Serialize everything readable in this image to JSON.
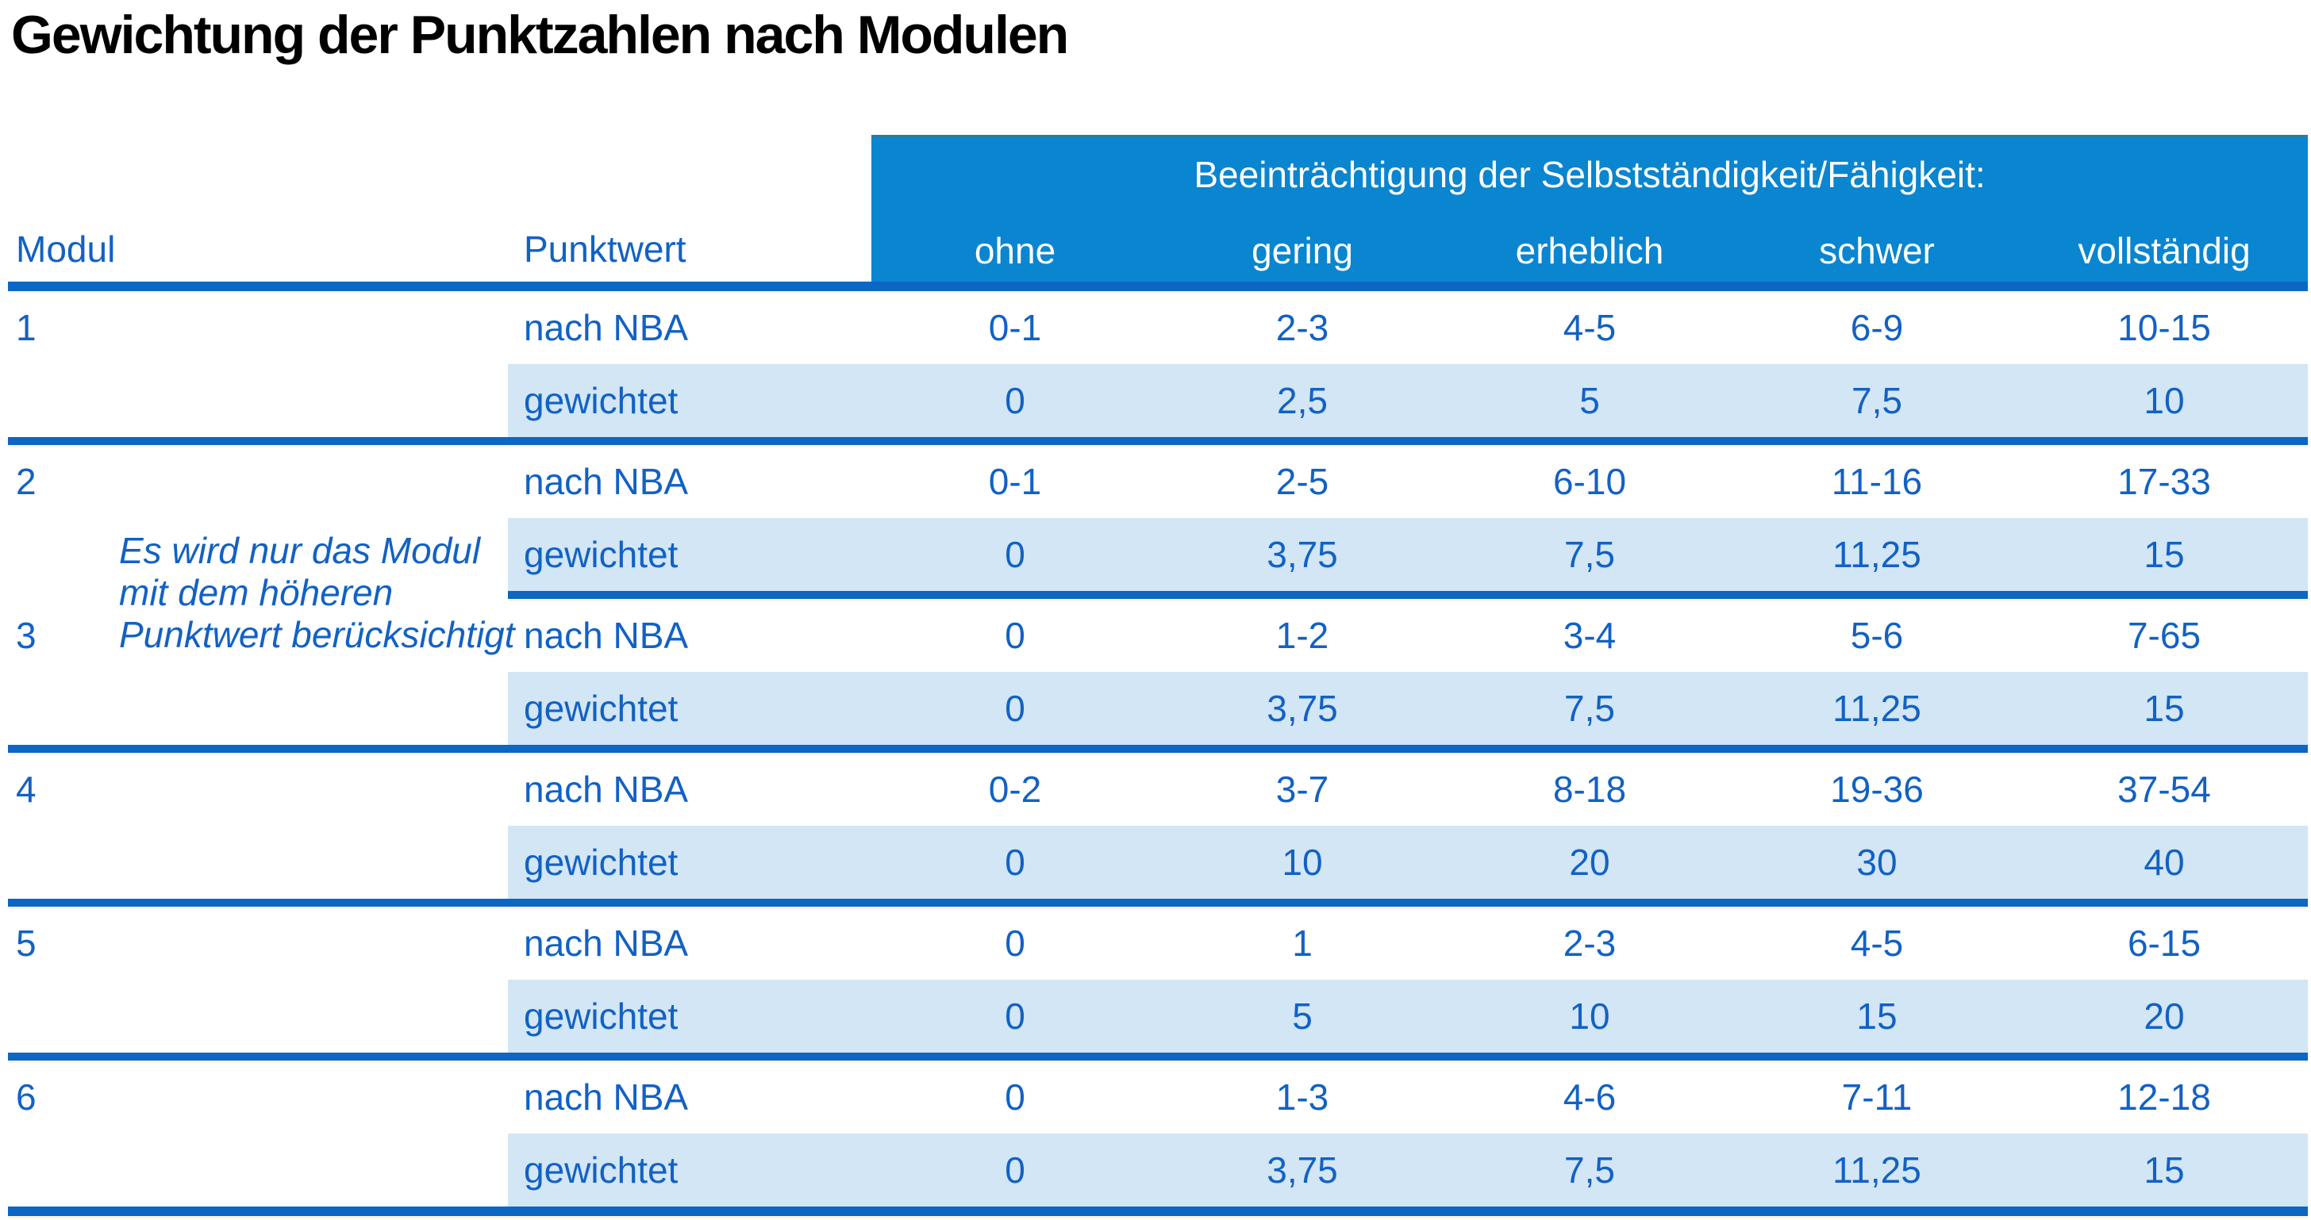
{
  "title": "Gewichtung der Punktzahlen nach Modulen",
  "colors": {
    "header_bg": "#0a85d0",
    "rule_blue": "#0b66c4",
    "row_stripe": "#d2e6f5",
    "text_blue": "#1261c5",
    "header_text": "#ffffff",
    "cream_edge": "#fdf4de"
  },
  "header": {
    "modul_label": "Modul",
    "punktwert_label": "Punktwert",
    "impairment_title": "Beeinträchtigung der Selbstständigkeit/Fähigkeit:",
    "levels": [
      "ohne",
      "gering",
      "erheblich",
      "schwer",
      "vollständig"
    ]
  },
  "row_labels": {
    "nba": "nach NBA",
    "weighted": "gewichtet"
  },
  "note": {
    "lines": [
      "Es wird nur das Modul",
      "mit dem höheren",
      "Punktwert berücksichtigt"
    ]
  },
  "modules": [
    {
      "number": "1",
      "nba": [
        "0-1",
        "2-3",
        "4-5",
        "6-9",
        "10-15"
      ],
      "weighted": [
        "0",
        "2,5",
        "5",
        "7,5",
        "10"
      ]
    },
    {
      "number": "2",
      "nba": [
        "0-1",
        "2-5",
        "6-10",
        "11-16",
        "17-33"
      ],
      "weighted": [
        "0",
        "3,75",
        "7,5",
        "11,25",
        "15"
      ]
    },
    {
      "number": "3",
      "nba": [
        "0",
        "1-2",
        "3-4",
        "5-6",
        "7-65"
      ],
      "weighted": [
        "0",
        "3,75",
        "7,5",
        "11,25",
        "15"
      ]
    },
    {
      "number": "4",
      "nba": [
        "0-2",
        "3-7",
        "8-18",
        "19-36",
        "37-54"
      ],
      "weighted": [
        "0",
        "10",
        "20",
        "30",
        "40"
      ]
    },
    {
      "number": "5",
      "nba": [
        "0",
        "1",
        "2-3",
        "4-5",
        "6-15"
      ],
      "weighted": [
        "0",
        "5",
        "10",
        "15",
        "20"
      ]
    },
    {
      "number": "6",
      "nba": [
        "0",
        "1-3",
        "4-6",
        "7-11",
        "12-18"
      ],
      "weighted": [
        "0",
        "3,75",
        "7,5",
        "11,25",
        "15"
      ]
    }
  ]
}
